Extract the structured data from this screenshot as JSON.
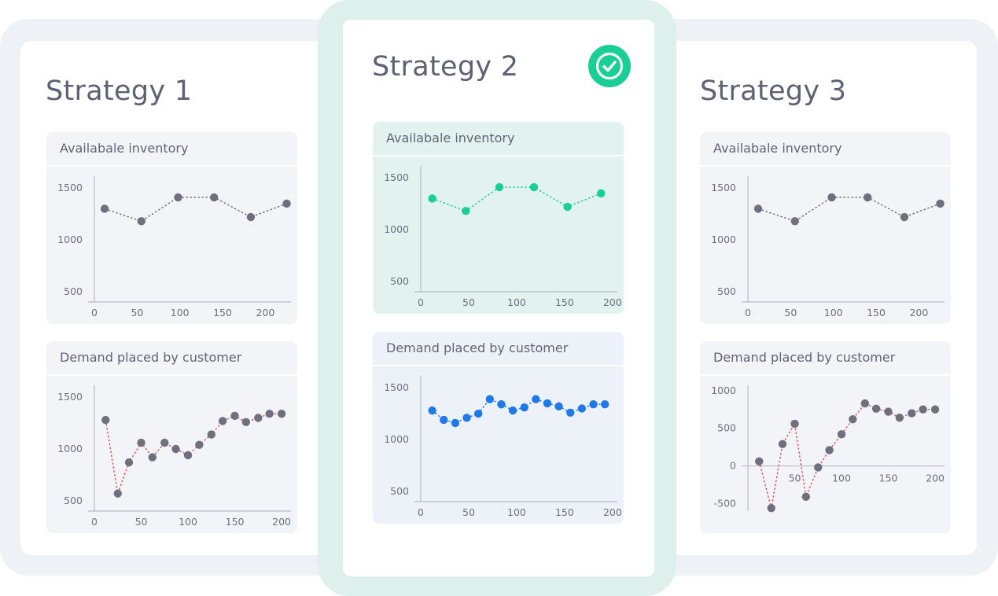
{
  "cards": [
    {
      "title": "Strategy 1",
      "selected": false
    },
    {
      "title": "Strategy 2",
      "selected": true,
      "badge_icon": "check-circle-icon"
    },
    {
      "title": "Strategy 3",
      "selected": false
    }
  ],
  "colors": {
    "neutral_points": "#6e707d",
    "inventory_line_neutral": "#6e707d",
    "demand_line_neutral": "#e05050",
    "selected_inventory": "#19cf93",
    "selected_demand": "#1f7ae8",
    "badge": "#19cf93"
  },
  "chart_data": [
    {
      "id": "s1-inventory",
      "type": "line",
      "title": "Availabale inventory",
      "x": [
        12,
        55,
        98,
        140,
        183,
        225
      ],
      "values": [
        1300,
        1180,
        1410,
        1410,
        1220,
        1350
      ],
      "xticks": [
        0,
        50,
        100,
        150,
        200
      ],
      "yticks": [
        500,
        1000,
        1500
      ],
      "xlim": [
        0,
        230
      ],
      "ylim": [
        400,
        1600
      ]
    },
    {
      "id": "s1-demand",
      "type": "line",
      "title": "Demand placed by customer",
      "x": [
        12,
        25,
        37,
        50,
        62,
        75,
        87,
        100,
        112,
        125,
        137,
        150,
        162,
        175,
        187,
        200
      ],
      "values": [
        1280,
        570,
        870,
        1060,
        920,
        1060,
        1000,
        940,
        1040,
        1140,
        1270,
        1320,
        1260,
        1300,
        1340,
        1340
      ],
      "xticks": [
        0,
        50,
        100,
        150,
        200
      ],
      "yticks": [
        500,
        1000,
        1500
      ],
      "xlim": [
        0,
        210
      ],
      "ylim": [
        400,
        1600
      ]
    },
    {
      "id": "s2-inventory",
      "type": "line",
      "title": "Availabale inventory",
      "x": [
        12,
        47,
        82,
        118,
        153,
        188
      ],
      "values": [
        1300,
        1180,
        1410,
        1410,
        1220,
        1350
      ],
      "xticks": [
        0,
        50,
        100,
        150,
        200
      ],
      "yticks": [
        500,
        1000,
        1500
      ],
      "xlim": [
        0,
        205
      ],
      "ylim": [
        400,
        1600
      ]
    },
    {
      "id": "s2-demand",
      "type": "line",
      "title": "Demand placed by customer",
      "x": [
        12,
        24,
        36,
        48,
        60,
        72,
        84,
        96,
        108,
        120,
        132,
        144,
        156,
        168,
        180,
        192
      ],
      "values": [
        1280,
        1190,
        1160,
        1210,
        1250,
        1390,
        1340,
        1280,
        1310,
        1390,
        1350,
        1320,
        1260,
        1300,
        1340,
        1340
      ],
      "xticks": [
        0,
        50,
        100,
        150,
        200
      ],
      "yticks": [
        500,
        1000,
        1500
      ],
      "xlim": [
        0,
        205
      ],
      "ylim": [
        400,
        1600
      ]
    },
    {
      "id": "s3-inventory",
      "type": "line",
      "title": "Availabale inventory",
      "x": [
        12,
        55,
        98,
        140,
        183,
        225
      ],
      "values": [
        1300,
        1180,
        1410,
        1410,
        1220,
        1350
      ],
      "xticks": [
        0,
        50,
        100,
        150,
        200
      ],
      "yticks": [
        500,
        1000,
        1500
      ],
      "xlim": [
        0,
        230
      ],
      "ylim": [
        400,
        1600
      ]
    },
    {
      "id": "s3-demand",
      "type": "line",
      "title": "Demand placed by customer",
      "x": [
        12,
        25,
        37,
        50,
        62,
        75,
        87,
        100,
        112,
        125,
        137,
        150,
        162,
        175,
        187,
        200
      ],
      "values": [
        60,
        -560,
        290,
        560,
        -410,
        -20,
        210,
        420,
        620,
        830,
        760,
        720,
        640,
        700,
        750,
        750
      ],
      "xticks": [
        0,
        50,
        100,
        150,
        200
      ],
      "yticks": [
        -500,
        0,
        500,
        1000
      ],
      "xlim": [
        0,
        210
      ],
      "ylim": [
        -600,
        1050
      ]
    }
  ]
}
